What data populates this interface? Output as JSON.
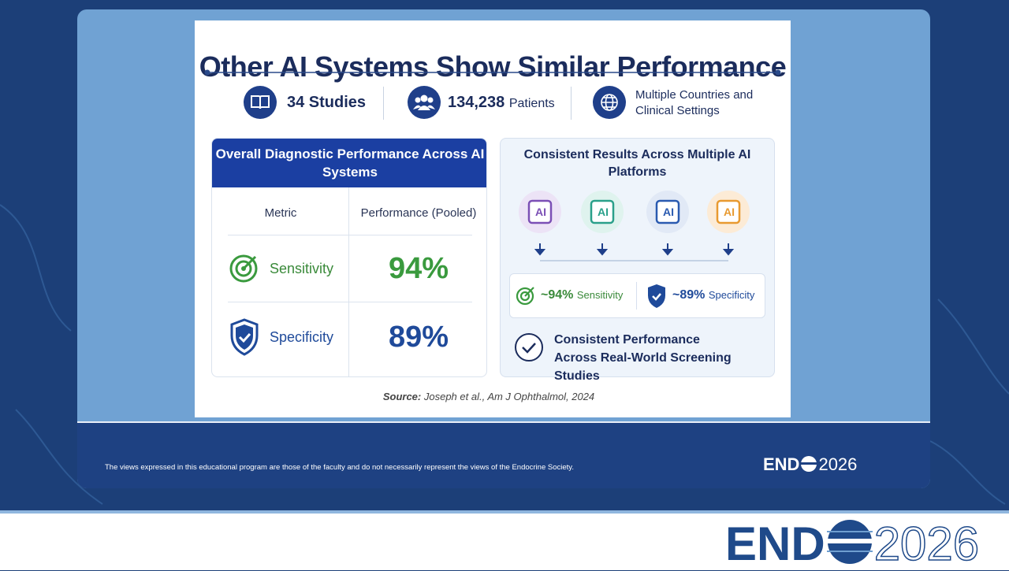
{
  "slide": {
    "title": "Other AI Systems Show Similar Performance",
    "stats": [
      {
        "text": "34 Studies"
      },
      {
        "text": "134,238",
        "unit": "Patients"
      },
      {
        "text": "Multiple Countries and Clinical Settings"
      }
    ],
    "table": {
      "title": "Overall Diagnostic Performance Across AI Systems",
      "columns": [
        "Metric",
        "Performance (Pooled)"
      ],
      "rows": [
        [
          "Sensitivity",
          "94%"
        ],
        [
          "Specificity",
          "89%"
        ]
      ]
    },
    "platforms": {
      "title": "Consistent Results Across Multiple AI Platforms",
      "chips": [
        "AI",
        "AI",
        "AI",
        "AI"
      ],
      "summary": [
        {
          "value": "~94%",
          "label": "Sensitivity"
        },
        {
          "value": "~89%",
          "label": "Specificity"
        }
      ],
      "conclusion": "Consistent Performance Across Real-World Screening Studies"
    },
    "source": {
      "label": "Source:",
      "text": "Joseph et al., Am J Ophthalmol, 2024"
    }
  },
  "footer": {
    "disclaimer": "The views expressed in this educational program are those of the faculty and do not necessarily represent the views of the Endocrine Society.",
    "logo": {
      "left": "END",
      "right": "2026"
    }
  }
}
